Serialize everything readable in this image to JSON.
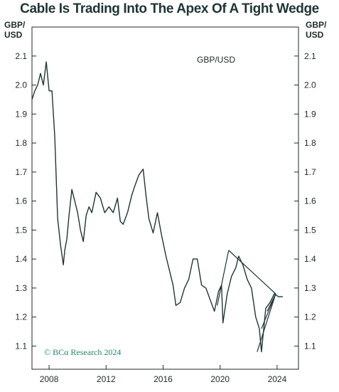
{
  "chart_data": {
    "type": "line",
    "title": "Cable Is Trading Into The Apex Of A Tight Wedge",
    "ylabel_left": "GBP/\nUSD",
    "ylabel_right": "GBP/\nUSD",
    "series_label": "GBP/USD",
    "footnote": "© BCα Research 2024",
    "xlim": [
      2006.8,
      2025.5
    ],
    "ylim": [
      1.02,
      2.2
    ],
    "x_ticks": [
      2008,
      2012,
      2016,
      2020,
      2024
    ],
    "x_tick_labels": [
      "2008",
      "2012",
      "2016",
      "2020",
      "2024"
    ],
    "y_ticks": [
      1.1,
      1.2,
      1.3,
      1.4,
      1.5,
      1.6,
      1.7,
      1.8,
      1.9,
      2.0,
      2.1
    ],
    "y_tick_labels": [
      "1.1",
      "1.2",
      "1.3",
      "1.4",
      "1.5",
      "1.6",
      "1.7",
      "1.8",
      "1.9",
      "2.0",
      "2.1"
    ],
    "grid": false,
    "line_color": "#1f3535",
    "series": [
      {
        "x": [
          2006.8,
          2007.0,
          2007.2,
          2007.4,
          2007.6,
          2007.8,
          2008.0,
          2008.2,
          2008.4,
          2008.6,
          2008.8,
          2009.0,
          2009.1,
          2009.25,
          2009.4,
          2009.6,
          2009.8,
          2010.0,
          2010.2,
          2010.4,
          2010.6,
          2010.8,
          2011.0,
          2011.3,
          2011.6,
          2011.9,
          2012.2,
          2012.5,
          2012.8,
          2013.0,
          2013.2,
          2013.5,
          2013.8,
          2014.0,
          2014.3,
          2014.6,
          2014.8,
          2015.0,
          2015.3,
          2015.6,
          2015.9,
          2016.2,
          2016.45,
          2016.7,
          2016.9,
          2017.2,
          2017.5,
          2017.8,
          2018.1,
          2018.4,
          2018.7,
          2019.0,
          2019.3,
          2019.6,
          2019.9,
          2020.1,
          2020.2,
          2020.5,
          2020.8,
          2021.1,
          2021.3,
          2021.6,
          2021.9,
          2022.2,
          2022.5,
          2022.75,
          2022.9,
          2023.2,
          2023.5,
          2023.8,
          2024.1,
          2024.4
        ],
        "y": [
          1.95,
          1.98,
          2.0,
          2.04,
          2.0,
          2.08,
          1.98,
          1.98,
          1.82,
          1.54,
          1.45,
          1.38,
          1.43,
          1.47,
          1.55,
          1.64,
          1.6,
          1.56,
          1.5,
          1.46,
          1.55,
          1.58,
          1.56,
          1.63,
          1.61,
          1.56,
          1.58,
          1.56,
          1.61,
          1.53,
          1.52,
          1.56,
          1.62,
          1.65,
          1.69,
          1.71,
          1.62,
          1.54,
          1.49,
          1.56,
          1.48,
          1.41,
          1.36,
          1.31,
          1.24,
          1.25,
          1.3,
          1.33,
          1.4,
          1.4,
          1.31,
          1.3,
          1.26,
          1.22,
          1.29,
          1.31,
          1.18,
          1.28,
          1.34,
          1.37,
          1.41,
          1.38,
          1.33,
          1.3,
          1.2,
          1.16,
          1.08,
          1.23,
          1.25,
          1.28,
          1.27,
          1.27
        ]
      }
    ],
    "wedge": {
      "upper": {
        "x": [
          2020.6,
          2023.9
        ],
        "y": [
          1.43,
          1.28
        ]
      },
      "lower_outer": {
        "x": [
          2022.6,
          2023.9
        ],
        "y": [
          1.08,
          1.28
        ]
      },
      "lower_left": {
        "x": [
          2019.8,
          2020.6
        ],
        "y": [
          1.24,
          1.43
        ]
      },
      "lower_inner": {
        "x": [
          2022.9,
          2023.9
        ],
        "y": [
          1.16,
          1.28
        ]
      },
      "lower_inner2": {
        "x": [
          2023.3,
          2023.9
        ],
        "y": [
          1.22,
          1.28
        ]
      }
    }
  }
}
